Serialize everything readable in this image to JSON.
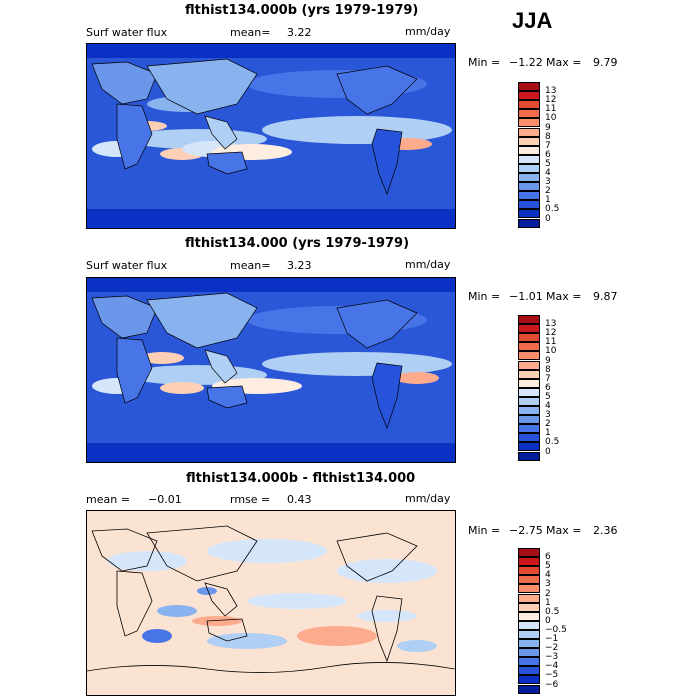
{
  "season": "JJA",
  "panels": [
    {
      "title": "flthist134.000b (yrs 1979-1979)",
      "left_stat": "Surf water flux",
      "mean_label": "mean=",
      "mean_value": "3.22",
      "units": "mm/day",
      "min_label": "Min =",
      "min_value": "−1.22",
      "max_label": "Max =",
      "max_value": "9.79",
      "levels": [
        "13",
        "12",
        "11",
        "10",
        "9",
        "8",
        "7",
        "6",
        "5",
        "4",
        "3",
        "2",
        "1",
        "0.5",
        "0"
      ],
      "colors": [
        "#a50f15",
        "#cb181d",
        "#e34a33",
        "#f16c4c",
        "#fb8d6b",
        "#fcac8c",
        "#fdd0b5",
        "#fdece0",
        "#d6e6fa",
        "#b0cff5",
        "#89b3ef",
        "#6a97ea",
        "#4774e6",
        "#2653da",
        "#0a30c4",
        "#041d9c"
      ],
      "map_base": "#2a56d8"
    },
    {
      "title": "flthist134.000 (yrs 1979-1979)",
      "left_stat": "Surf water flux",
      "mean_label": "mean=",
      "mean_value": "3.23",
      "units": "mm/day",
      "min_label": "Min =",
      "min_value": "−1.01",
      "max_label": "Max =",
      "max_value": "9.87",
      "levels": [
        "13",
        "12",
        "11",
        "10",
        "9",
        "8",
        "7",
        "6",
        "5",
        "4",
        "3",
        "2",
        "1",
        "0.5",
        "0"
      ],
      "colors": [
        "#a50f15",
        "#cb181d",
        "#e34a33",
        "#f16c4c",
        "#fb8d6b",
        "#fcac8c",
        "#fdd0b5",
        "#fdece0",
        "#d6e6fa",
        "#b0cff5",
        "#89b3ef",
        "#6a97ea",
        "#4774e6",
        "#2653da",
        "#0a30c4",
        "#041d9c"
      ],
      "map_base": "#2a56d8"
    },
    {
      "title": "flthist134.000b - flthist134.000",
      "left_stat": "mean =",
      "left_value": "−0.01",
      "rmse_label": "rmse =",
      "rmse_value": "0.43",
      "units": "mm/day",
      "min_label": "Min =",
      "min_value": "−2.75",
      "max_label": "Max =",
      "max_value": "2.36",
      "levels": [
        "6",
        "5",
        "4",
        "3",
        "2",
        "1",
        "0.5",
        "0",
        "−0.5",
        "−1",
        "−2",
        "−3",
        "−4",
        "−5",
        "−6"
      ],
      "colors": [
        "#a50f15",
        "#cb181d",
        "#e34a33",
        "#f16c4c",
        "#fb8d6b",
        "#fcac8c",
        "#fdd0b5",
        "#fdece0",
        "#d6e6fa",
        "#b0cff5",
        "#89b3ef",
        "#6a97ea",
        "#4774e6",
        "#2653da",
        "#0a30c4",
        "#041d9c"
      ],
      "map_base": "#fbe3d3"
    }
  ]
}
